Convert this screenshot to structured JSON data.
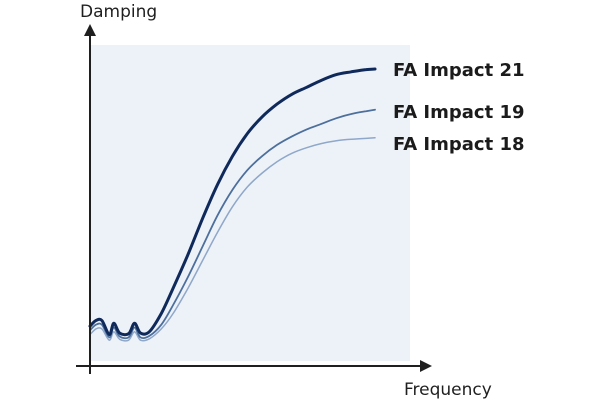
{
  "chart_data": {
    "type": "line",
    "title": "",
    "xlabel": "Frequency",
    "ylabel": "Damping",
    "x_ticks_labeled": false,
    "y_ticks_labeled": false,
    "grid": false,
    "legend": "inline-right-end",
    "colors": {
      "plot_background": "#edf2f9",
      "axis": "#1f1f1f"
    },
    "x": [
      0.0,
      0.02,
      0.04,
      0.065,
      0.08,
      0.1,
      0.13,
      0.15,
      0.17,
      0.2,
      0.24,
      0.28,
      0.33,
      0.38,
      0.43,
      0.48,
      0.53,
      0.58,
      0.63,
      0.68,
      0.73,
      0.78,
      0.83,
      0.88,
      0.93,
      0.96
    ],
    "series": [
      {
        "name": "FA Impact 21",
        "color": "#0f2a5a",
        "values": [
          0.085,
          0.105,
          0.105,
          0.055,
          0.095,
          0.06,
          0.058,
          0.095,
          0.06,
          0.065,
          0.13,
          0.22,
          0.34,
          0.47,
          0.59,
          0.69,
          0.77,
          0.83,
          0.875,
          0.91,
          0.935,
          0.96,
          0.98,
          0.99,
          0.998,
          1.0
        ]
      },
      {
        "name": "FA Impact 19",
        "color": "#4d6f9c",
        "values": [
          0.07,
          0.09,
          0.09,
          0.045,
          0.08,
          0.048,
          0.045,
          0.08,
          0.045,
          0.05,
          0.09,
          0.16,
          0.26,
          0.37,
          0.48,
          0.57,
          0.64,
          0.69,
          0.73,
          0.76,
          0.785,
          0.805,
          0.825,
          0.84,
          0.85,
          0.855
        ]
      },
      {
        "name": "FA Impact 18",
        "color": "#8fa7c9",
        "values": [
          0.055,
          0.075,
          0.075,
          0.035,
          0.065,
          0.038,
          0.035,
          0.065,
          0.035,
          0.04,
          0.075,
          0.13,
          0.22,
          0.32,
          0.42,
          0.51,
          0.58,
          0.63,
          0.67,
          0.7,
          0.72,
          0.735,
          0.745,
          0.75,
          0.753,
          0.755
        ]
      }
    ]
  }
}
